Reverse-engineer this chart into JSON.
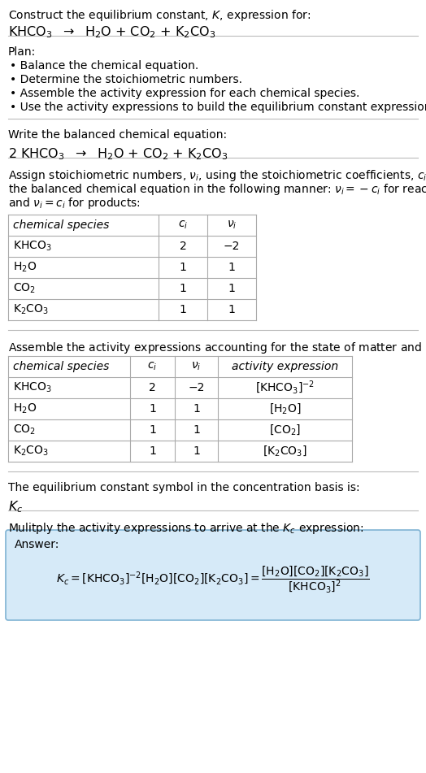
{
  "title_line1": "Construct the equilibrium constant, $K$, expression for:",
  "title_line2": "KHCO$_3$  $\\rightarrow$  H$_2$O + CO$_2$ + K$_2$CO$_3$",
  "plan_header": "Plan:",
  "plan_items": [
    "• Balance the chemical equation.",
    "• Determine the stoichiometric numbers.",
    "• Assemble the activity expression for each chemical species.",
    "• Use the activity expressions to build the equilibrium constant expression."
  ],
  "balanced_header": "Write the balanced chemical equation:",
  "balanced_eq": "2 KHCO$_3$  $\\rightarrow$  H$_2$O + CO$_2$ + K$_2$CO$_3$",
  "stoich_header_lines": [
    "Assign stoichiometric numbers, $\\nu_i$, using the stoichiometric coefficients, $c_i$, from",
    "the balanced chemical equation in the following manner: $\\nu_i = -c_i$ for reactants",
    "and $\\nu_i = c_i$ for products:"
  ],
  "table1_headers": [
    "chemical species",
    "$c_i$",
    "$\\nu_i$"
  ],
  "table1_rows": [
    [
      "KHCO$_3$",
      "2",
      "−2"
    ],
    [
      "H$_2$O",
      "1",
      "1"
    ],
    [
      "CO$_2$",
      "1",
      "1"
    ],
    [
      "K$_2$CO$_3$",
      "1",
      "1"
    ]
  ],
  "activity_header": "Assemble the activity expressions accounting for the state of matter and $\\nu_i$:",
  "table2_headers": [
    "chemical species",
    "$c_i$",
    "$\\nu_i$",
    "activity expression"
  ],
  "table2_rows": [
    [
      "KHCO$_3$",
      "2",
      "−2",
      "[KHCO$_3$]$^{-2}$"
    ],
    [
      "H$_2$O",
      "1",
      "1",
      "[H$_2$O]"
    ],
    [
      "CO$_2$",
      "1",
      "1",
      "[CO$_2$]"
    ],
    [
      "K$_2$CO$_3$",
      "1",
      "1",
      "[K$_2$CO$_3$]"
    ]
  ],
  "kc_header": "The equilibrium constant symbol in the concentration basis is:",
  "kc_symbol": "$K_c$",
  "multiply_header": "Mulitply the activity expressions to arrive at the $K_c$ expression:",
  "answer_label": "Answer:",
  "bg_color": "#ffffff",
  "answer_box_color": "#d6eaf8",
  "answer_box_border": "#7fb3d3",
  "sep_line_color": "#bbbbbb",
  "table_border_color": "#aaaaaa",
  "text_color": "#000000",
  "font_size": 10.0,
  "fig_width": 5.24,
  "fig_height": 9.51,
  "dpi": 100
}
